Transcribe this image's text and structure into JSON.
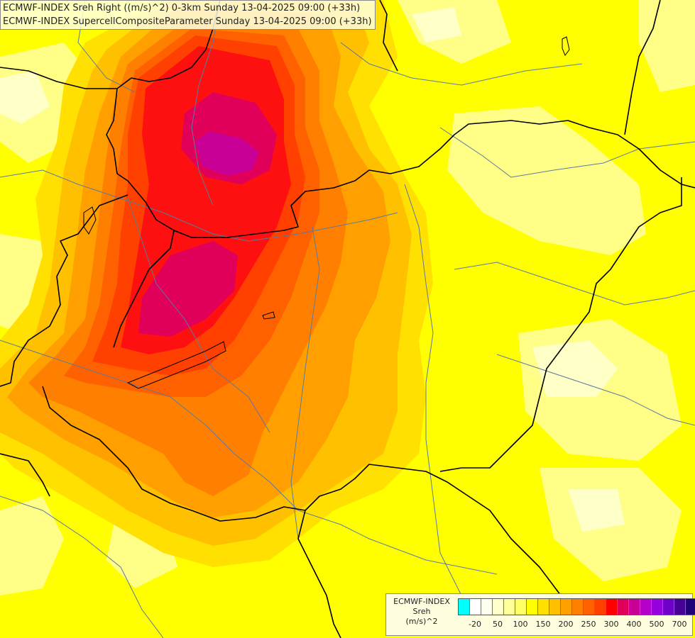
{
  "header": {
    "line1": "ECMWF-INDEX Sreh Right ((m/s)^2) 0-3km Sunday 13-04-2025 09:00 (+33h)",
    "line2": "ECMWF-INDEX SupercellCompositeParameter Sunday 13-04-2025 09:00 (+33h)"
  },
  "legend": {
    "model": "ECMWF-INDEX",
    "variable": "Sreh",
    "unit": "(m/s)^2",
    "colors": [
      "#00ffff",
      "#ffffff",
      "#fffff0",
      "#ffffcc",
      "#ffff99",
      "#ffff66",
      "#ffff00",
      "#ffe000",
      "#ffc000",
      "#ffa000",
      "#ff8000",
      "#ff6000",
      "#ff4000",
      "#ff0000",
      "#e0005a",
      "#c80096",
      "#b400c8",
      "#9600dc",
      "#6e00c8",
      "#460096",
      "#1e0078"
    ],
    "ticks": [
      {
        "label": "-20",
        "pos": 1
      },
      {
        "label": "50",
        "pos": 3
      },
      {
        "label": "100",
        "pos": 5
      },
      {
        "label": "150",
        "pos": 7
      },
      {
        "label": "200",
        "pos": 9
      },
      {
        "label": "250",
        "pos": 11
      },
      {
        "label": "300",
        "pos": 13
      },
      {
        "label": "400",
        "pos": 15
      },
      {
        "label": "500",
        "pos": 17
      },
      {
        "label": "700",
        "pos": 19
      }
    ]
  },
  "map_colors": {
    "background": "#ffff00",
    "pale": "#ffffb0",
    "light": "#ffff66",
    "gold": "#ffe000",
    "amber": "#ffc000",
    "orange": "#ffa000",
    "dark_orange": "#ff8000",
    "red_orange": "#ff6000",
    "red_mid": "#ff4000",
    "red": "#ff1010",
    "crimson": "#e0005a",
    "magenta": "#c80096",
    "border": "#000000",
    "river": "#5a7aa0"
  }
}
